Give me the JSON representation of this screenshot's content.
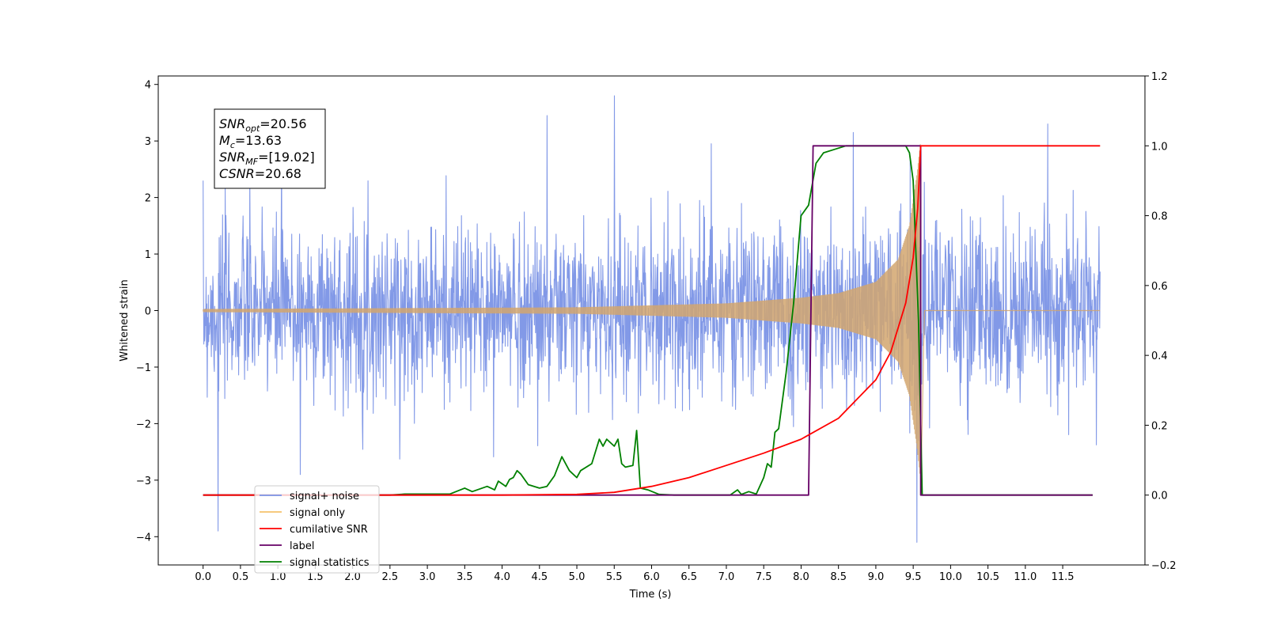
{
  "chart_data": {
    "type": "line",
    "xlabel": "Time (s)",
    "ylabel": "Whitened strain",
    "xlim": [
      -0.6,
      12.6
    ],
    "ylim": [
      -4.5,
      4.15
    ],
    "y2lim": [
      -0.2,
      1.2
    ],
    "x_ticks": [
      "0.0",
      "0.5",
      "1.0",
      "1.5",
      "2.0",
      "2.5",
      "3.0",
      "3.5",
      "4.0",
      "4.5",
      "5.0",
      "5.5",
      "6.0",
      "6.5",
      "7.0",
      "7.5",
      "8.0",
      "8.5",
      "9.0",
      "9.5",
      "10.0",
      "10.5",
      "11.0",
      "11.5"
    ],
    "y_ticks": [
      "4",
      "3",
      "2",
      "1",
      "0",
      "−1",
      "−2",
      "−3",
      "−4"
    ],
    "y2_ticks": [
      "1.2",
      "1.0",
      "0.8",
      "0.6",
      "0.4",
      "0.2",
      "0.0",
      "−0.2"
    ],
    "annotation_lines": [
      {
        "label": "SNR",
        "sub": "opt",
        "value": "=20.56"
      },
      {
        "label": "M",
        "sub": "c",
        "value": "=13.63"
      },
      {
        "label": "SNR",
        "sub": "MF",
        "value": "=[19.02]"
      },
      {
        "label": "CSNR",
        "sub": "",
        "value": "=20.68"
      }
    ],
    "legend_position": "lower-left",
    "legend": [
      {
        "label": "signal+ noise",
        "color": "#7b93e6"
      },
      {
        "label": "signal only",
        "color": "#f5c26b"
      },
      {
        "label": "cumilative SNR",
        "color": "#ff0000"
      },
      {
        "label": "label",
        "color": "#660066"
      },
      {
        "label": "signal statistics",
        "color": "#008000"
      }
    ],
    "series": [
      {
        "name": "signal+ noise",
        "axis": "left",
        "color": "#7b93e6",
        "x_range": [
          0.0,
          12.0
        ],
        "noise_band_approx": [
          -2.3,
          2.3
        ],
        "peak_values": [
          {
            "x": 0.0,
            "y": 2.3
          },
          {
            "x": 0.2,
            "y": -3.9
          },
          {
            "x": 1.05,
            "y": 2.8
          },
          {
            "x": 1.3,
            "y": -2.9
          },
          {
            "x": 4.6,
            "y": 3.45
          },
          {
            "x": 5.5,
            "y": 3.8
          },
          {
            "x": 6.8,
            "y": 2.95
          },
          {
            "x": 8.7,
            "y": 3.15
          },
          {
            "x": 9.55,
            "y": -4.1
          },
          {
            "x": 11.3,
            "y": 3.3
          }
        ]
      },
      {
        "name": "signal only",
        "axis": "left",
        "color": "#d2a66f",
        "x_range": [
          0.0,
          12.0
        ],
        "chirp_envelope": [
          {
            "x": 0.0,
            "y": 0.02
          },
          {
            "x": 5.0,
            "y": 0.05
          },
          {
            "x": 7.0,
            "y": 0.12
          },
          {
            "x": 8.0,
            "y": 0.22
          },
          {
            "x": 8.5,
            "y": 0.3
          },
          {
            "x": 9.0,
            "y": 0.5
          },
          {
            "x": 9.3,
            "y": 0.9
          },
          {
            "x": 9.45,
            "y": 1.5
          },
          {
            "x": 9.55,
            "y": 2.4
          },
          {
            "x": 9.6,
            "y": 3.0
          }
        ],
        "merger_time": 9.6
      },
      {
        "name": "cumilative SNR",
        "axis": "right",
        "color": "#ff0000",
        "points": [
          {
            "x": 0.0,
            "y": 0.0
          },
          {
            "x": 4.0,
            "y": 0.0
          },
          {
            "x": 5.0,
            "y": 0.002
          },
          {
            "x": 5.5,
            "y": 0.008
          },
          {
            "x": 6.0,
            "y": 0.025
          },
          {
            "x": 6.5,
            "y": 0.05
          },
          {
            "x": 7.0,
            "y": 0.085
          },
          {
            "x": 7.5,
            "y": 0.12
          },
          {
            "x": 8.0,
            "y": 0.16
          },
          {
            "x": 8.5,
            "y": 0.22
          },
          {
            "x": 9.0,
            "y": 0.33
          },
          {
            "x": 9.2,
            "y": 0.41
          },
          {
            "x": 9.4,
            "y": 0.55
          },
          {
            "x": 9.5,
            "y": 0.68
          },
          {
            "x": 9.56,
            "y": 0.82
          },
          {
            "x": 9.6,
            "y": 1.0
          },
          {
            "x": 12.0,
            "y": 1.0
          }
        ]
      },
      {
        "name": "label",
        "axis": "right",
        "color": "#660066",
        "points": [
          {
            "x": 0.0,
            "y": 0.0
          },
          {
            "x": 8.1,
            "y": 0.0
          },
          {
            "x": 8.16,
            "y": 1.0
          },
          {
            "x": 9.6,
            "y": 1.0
          },
          {
            "x": 9.6,
            "y": 0.0
          },
          {
            "x": 11.9,
            "y": 0.0
          }
        ]
      },
      {
        "name": "signal statistics",
        "axis": "right",
        "color": "#008000",
        "points": [
          {
            "x": 0.0,
            "y": 0.0
          },
          {
            "x": 2.5,
            "y": 0.0
          },
          {
            "x": 2.7,
            "y": 0.003
          },
          {
            "x": 3.3,
            "y": 0.003
          },
          {
            "x": 3.5,
            "y": 0.02
          },
          {
            "x": 3.6,
            "y": 0.01
          },
          {
            "x": 3.8,
            "y": 0.025
          },
          {
            "x": 3.9,
            "y": 0.015
          },
          {
            "x": 3.95,
            "y": 0.04
          },
          {
            "x": 4.05,
            "y": 0.025
          },
          {
            "x": 4.1,
            "y": 0.045
          },
          {
            "x": 4.15,
            "y": 0.05
          },
          {
            "x": 4.2,
            "y": 0.07
          },
          {
            "x": 4.25,
            "y": 0.06
          },
          {
            "x": 4.35,
            "y": 0.03
          },
          {
            "x": 4.5,
            "y": 0.02
          },
          {
            "x": 4.6,
            "y": 0.025
          },
          {
            "x": 4.7,
            "y": 0.055
          },
          {
            "x": 4.8,
            "y": 0.11
          },
          {
            "x": 4.9,
            "y": 0.07
          },
          {
            "x": 5.0,
            "y": 0.05
          },
          {
            "x": 5.05,
            "y": 0.07
          },
          {
            "x": 5.2,
            "y": 0.09
          },
          {
            "x": 5.3,
            "y": 0.16
          },
          {
            "x": 5.35,
            "y": 0.14
          },
          {
            "x": 5.4,
            "y": 0.16
          },
          {
            "x": 5.5,
            "y": 0.14
          },
          {
            "x": 5.55,
            "y": 0.16
          },
          {
            "x": 5.6,
            "y": 0.09
          },
          {
            "x": 5.65,
            "y": 0.08
          },
          {
            "x": 5.75,
            "y": 0.085
          },
          {
            "x": 5.8,
            "y": 0.185
          },
          {
            "x": 5.85,
            "y": 0.02
          },
          {
            "x": 5.95,
            "y": 0.015
          },
          {
            "x": 6.1,
            "y": 0.002
          },
          {
            "x": 6.3,
            "y": 0.0
          },
          {
            "x": 7.05,
            "y": 0.0
          },
          {
            "x": 7.15,
            "y": 0.015
          },
          {
            "x": 7.2,
            "y": 0.002
          },
          {
            "x": 7.3,
            "y": 0.01
          },
          {
            "x": 7.4,
            "y": 0.003
          },
          {
            "x": 7.5,
            "y": 0.05
          },
          {
            "x": 7.55,
            "y": 0.09
          },
          {
            "x": 7.6,
            "y": 0.08
          },
          {
            "x": 7.65,
            "y": 0.18
          },
          {
            "x": 7.7,
            "y": 0.19
          },
          {
            "x": 7.8,
            "y": 0.35
          },
          {
            "x": 7.9,
            "y": 0.55
          },
          {
            "x": 8.0,
            "y": 0.8
          },
          {
            "x": 8.1,
            "y": 0.83
          },
          {
            "x": 8.2,
            "y": 0.95
          },
          {
            "x": 8.3,
            "y": 0.98
          },
          {
            "x": 8.45,
            "y": 0.99
          },
          {
            "x": 8.6,
            "y": 1.0
          },
          {
            "x": 9.4,
            "y": 1.0
          },
          {
            "x": 9.45,
            "y": 0.98
          },
          {
            "x": 9.5,
            "y": 0.9
          },
          {
            "x": 9.57,
            "y": 0.5
          },
          {
            "x": 9.62,
            "y": 0.0
          },
          {
            "x": 11.9,
            "y": 0.0
          }
        ]
      }
    ]
  }
}
